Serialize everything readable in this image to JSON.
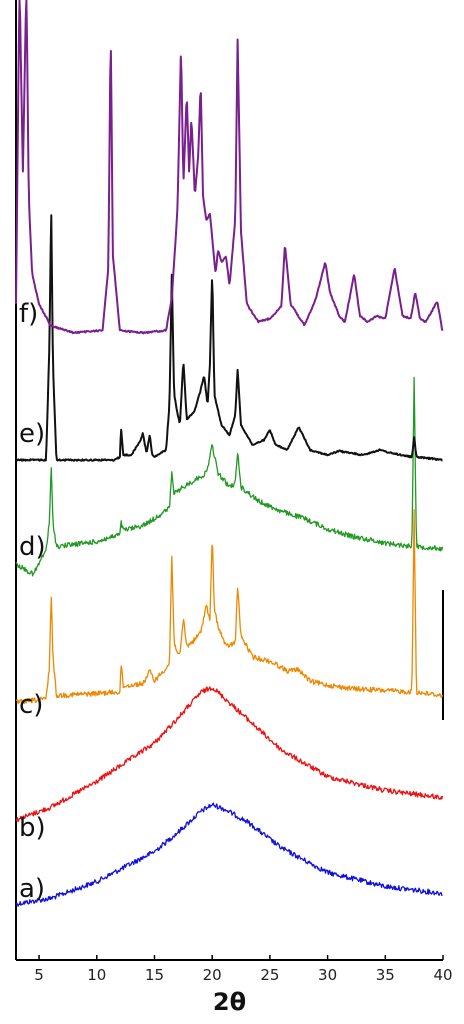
{
  "chart_data": {
    "type": "line",
    "xlabel": "2θ",
    "ylabel": "",
    "xlim": [
      3,
      40
    ],
    "xticks": [
      "5",
      "10",
      "15",
      "20",
      "25",
      "30",
      "35",
      "40"
    ],
    "grid": false,
    "legend": "none",
    "series": [
      {
        "name": "a)",
        "color": "#1111dd",
        "x": [
          3,
          6,
          10,
          15,
          17,
          19,
          20,
          21,
          23,
          26,
          30,
          35,
          40
        ],
        "y": [
          0.3,
          0.38,
          0.62,
          1.05,
          1.32,
          1.62,
          1.72,
          1.66,
          1.48,
          1.1,
          0.75,
          0.55,
          0.45
        ]
      },
      {
        "name": "b)",
        "color": "#ee1111",
        "x": [
          3,
          6,
          10,
          15,
          17,
          19,
          20,
          21,
          23,
          26,
          30,
          35,
          40
        ],
        "y": [
          0.5,
          0.68,
          1.05,
          1.6,
          1.95,
          2.32,
          2.4,
          2.25,
          1.95,
          1.5,
          1.12,
          0.92,
          0.82
        ]
      },
      {
        "name": "c)",
        "color": "#ee8800",
        "x": [
          3,
          5.6,
          5.9,
          6.05,
          6.2,
          6.5,
          10,
          12,
          12.1,
          12.3,
          13,
          14,
          14.6,
          15,
          16.3,
          16.5,
          16.7,
          17.2,
          17.5,
          17.8,
          18.5,
          19,
          19.5,
          19.8,
          20,
          20.2,
          20.6,
          21.2,
          22,
          22.2,
          22.5,
          23.5,
          24.8,
          25.5,
          26.5,
          27.5,
          28.5,
          30,
          32,
          35,
          37.3,
          37.5,
          37.7,
          38.5,
          40
        ],
        "y": [
          0.25,
          0.3,
          0.75,
          1.85,
          0.9,
          0.35,
          0.38,
          0.4,
          0.82,
          0.48,
          0.5,
          0.52,
          0.7,
          0.56,
          0.8,
          2.35,
          1.1,
          0.9,
          1.45,
          1.05,
          1.15,
          1.25,
          1.65,
          1.4,
          2.65,
          1.55,
          1.3,
          1.05,
          1.1,
          1.9,
          1.2,
          0.9,
          0.85,
          0.8,
          0.7,
          0.72,
          0.55,
          0.5,
          0.45,
          0.42,
          0.4,
          3.0,
          0.4,
          0.38,
          0.35
        ]
      },
      {
        "name": "d)",
        "color": "#229922",
        "x": [
          3,
          4.5,
          5.6,
          5.9,
          6.05,
          6.2,
          6.5,
          10,
          12,
          12.1,
          12.3,
          14,
          15,
          16.3,
          16.5,
          16.7,
          17.5,
          18.5,
          19,
          19.5,
          20,
          20.5,
          21.5,
          22,
          22.2,
          22.5,
          24,
          26,
          28,
          30,
          32,
          35,
          37.3,
          37.5,
          37.7,
          40
        ],
        "y": [
          0.3,
          0.15,
          0.5,
          0.9,
          1.7,
          0.9,
          0.55,
          0.62,
          0.72,
          0.9,
          0.78,
          0.85,
          0.95,
          1.1,
          1.6,
          1.3,
          1.4,
          1.5,
          1.55,
          1.6,
          2.0,
          1.6,
          1.4,
          1.45,
          1.9,
          1.4,
          1.2,
          1.05,
          0.95,
          0.8,
          0.7,
          0.6,
          0.55,
          3.0,
          0.55,
          0.52
        ]
      },
      {
        "name": "e)",
        "color": "#111111",
        "x": [
          3,
          5.6,
          5.9,
          6.05,
          6.2,
          6.5,
          11.5,
          12,
          12.1,
          12.3,
          13,
          13.8,
          14,
          14.3,
          14.6,
          14.8,
          15,
          16,
          16.3,
          16.5,
          16.7,
          17.2,
          17.5,
          17.8,
          18.5,
          19,
          19.3,
          19.6,
          19.8,
          20,
          20.2,
          20.8,
          21.5,
          22,
          22.2,
          22.5,
          23.5,
          24.5,
          25,
          25.5,
          26.5,
          27.5,
          28.5,
          30,
          31,
          33,
          34.5,
          35.5,
          37.3,
          37.5,
          37.7,
          40
        ],
        "y": [
          0.05,
          0.05,
          1.2,
          2.6,
          1.0,
          0.05,
          0.05,
          0.08,
          0.38,
          0.1,
          0.1,
          0.25,
          0.32,
          0.12,
          0.3,
          0.1,
          0.08,
          0.15,
          0.6,
          1.9,
          0.7,
          0.4,
          1.05,
          0.45,
          0.55,
          0.75,
          0.9,
          0.6,
          1.0,
          1.95,
          0.7,
          0.4,
          0.3,
          0.5,
          0.95,
          0.4,
          0.2,
          0.25,
          0.35,
          0.2,
          0.15,
          0.38,
          0.15,
          0.1,
          0.14,
          0.1,
          0.15,
          0.12,
          0.08,
          0.28,
          0.08,
          0.05
        ]
      },
      {
        "name": "f)",
        "color": "#7a1f8f",
        "x": [
          3,
          3.3,
          3.6,
          3.9,
          4.1,
          4.4,
          5,
          6,
          8,
          10.5,
          11,
          11.2,
          11.4,
          12,
          14,
          16,
          16.5,
          17,
          17.3,
          17.5,
          17.8,
          18,
          18.2,
          18.5,
          18.8,
          19,
          19.2,
          19.5,
          19.8,
          20.3,
          20.5,
          20.8,
          21.2,
          21.5,
          22,
          22.2,
          22.5,
          23,
          24,
          25,
          26,
          26.3,
          26.8,
          28,
          29,
          29.8,
          30.2,
          31,
          31.5,
          32.3,
          32.8,
          33.5,
          34.2,
          35,
          35.8,
          36.5,
          37.2,
          37.6,
          38,
          38.5,
          39.5,
          40
        ],
        "y": [
          0.3,
          3.0,
          1.4,
          3.0,
          1.2,
          0.55,
          0.3,
          0.12,
          0.06,
          0.08,
          0.6,
          2.6,
          0.7,
          0.08,
          0.06,
          0.08,
          0.35,
          1.1,
          2.45,
          1.3,
          2.05,
          1.4,
          1.85,
          1.2,
          1.55,
          2.15,
          1.2,
          1.0,
          1.05,
          0.55,
          0.75,
          0.65,
          0.7,
          0.45,
          1.0,
          2.5,
          0.9,
          0.3,
          0.15,
          0.18,
          0.28,
          0.8,
          0.3,
          0.12,
          0.35,
          0.65,
          0.4,
          0.2,
          0.15,
          0.55,
          0.2,
          0.15,
          0.2,
          0.18,
          0.6,
          0.2,
          0.18,
          0.4,
          0.18,
          0.15,
          0.32,
          0.05
        ]
      }
    ]
  }
}
